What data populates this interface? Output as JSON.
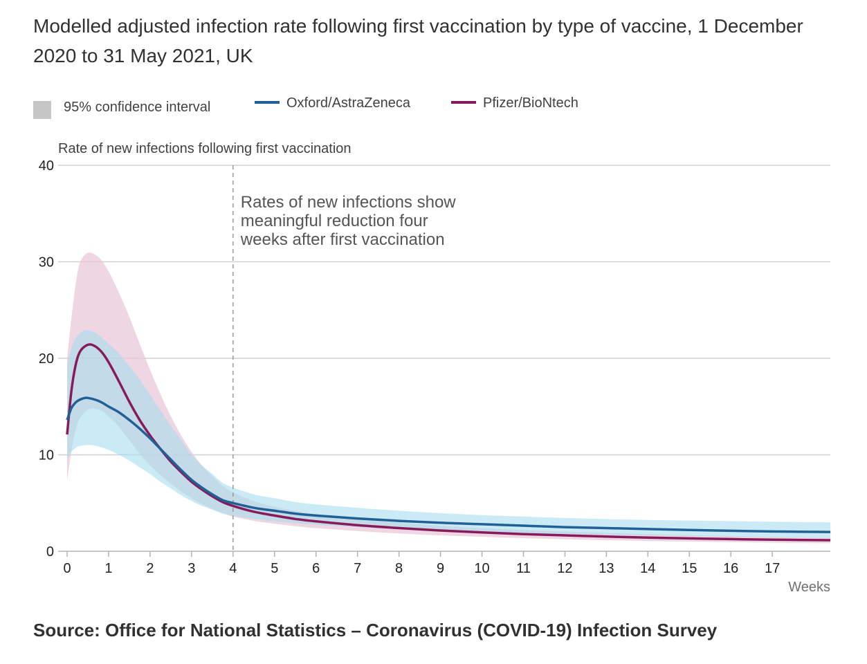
{
  "title": "Modelled adjusted infection rate following first vaccination by type of vaccine, 1 December 2020 to 31 May 2021, UK",
  "source": "Source: Office for National Statistics – Coronavirus (COVID-19) Infection Survey",
  "legend": {
    "ci_label": "95% confidence interval",
    "oxford_label": "Oxford/AstraZeneca",
    "pfizer_label": "Pfizer/BioNtech"
  },
  "colors": {
    "oxford": "#206095",
    "pfizer": "#871A5B",
    "oxford_ci": "#a6dcef",
    "pfizer_ci": "#e8c8d8",
    "ci_legend": "#c6c6c6",
    "grid": "#d0d0d0",
    "axis": "#b3b3b3",
    "annotation_line": "#999999"
  },
  "chart_data": {
    "type": "line",
    "ylabel": "Rate of new infections following first vaccination",
    "xlabel": "Weeks",
    "xlim": [
      0,
      18.4
    ],
    "ylim": [
      0,
      40
    ],
    "yticks": [
      0,
      10,
      20,
      30,
      40
    ],
    "xticks": [
      0,
      1,
      2,
      3,
      4,
      5,
      6,
      7,
      8,
      9,
      10,
      11,
      12,
      13,
      14,
      15,
      16,
      17
    ],
    "grid": true,
    "legend_position": "top-left",
    "annotation": {
      "x": 4,
      "text": [
        "Rates of new infections show",
        "meaningful reduction four",
        "weeks after first vaccination"
      ]
    },
    "series": [
      {
        "name": "Oxford/AstraZeneca",
        "x": [
          0,
          0.1,
          0.2,
          0.3,
          0.45,
          0.6,
          0.8,
          1,
          1.25,
          1.5,
          1.75,
          2,
          2.25,
          2.5,
          2.75,
          3,
          3.25,
          3.5,
          3.75,
          4,
          4.5,
          5,
          5.5,
          6,
          7,
          8,
          9,
          10,
          11,
          12,
          13,
          14,
          15,
          16,
          17,
          18.4
        ],
        "y": [
          13.6,
          14.8,
          15.4,
          15.7,
          15.9,
          15.8,
          15.5,
          15.0,
          14.4,
          13.6,
          12.7,
          11.7,
          10.6,
          9.5,
          8.4,
          7.4,
          6.6,
          5.9,
          5.3,
          5.0,
          4.5,
          4.2,
          3.9,
          3.7,
          3.4,
          3.15,
          2.95,
          2.8,
          2.65,
          2.5,
          2.4,
          2.3,
          2.2,
          2.12,
          2.05,
          2.0
        ],
        "ci_lower": [
          9.5,
          10.3,
          10.7,
          10.9,
          11.0,
          11.0,
          10.8,
          10.5,
          10.0,
          9.4,
          8.7,
          8.0,
          7.2,
          6.5,
          5.8,
          5.2,
          4.7,
          4.3,
          3.9,
          3.7,
          3.35,
          3.1,
          2.9,
          2.75,
          2.5,
          2.3,
          2.15,
          2.0,
          1.9,
          1.8,
          1.72,
          1.65,
          1.58,
          1.52,
          1.46,
          1.4
        ],
        "ci_upper": [
          19.3,
          21.0,
          22.0,
          22.6,
          22.9,
          22.8,
          22.3,
          21.5,
          20.5,
          19.2,
          17.8,
          16.2,
          14.6,
          13.0,
          11.5,
          10.0,
          8.9,
          8.0,
          7.1,
          6.6,
          5.9,
          5.5,
          5.1,
          4.85,
          4.5,
          4.2,
          3.95,
          3.75,
          3.6,
          3.45,
          3.33,
          3.25,
          3.18,
          3.12,
          3.06,
          3.0
        ]
      },
      {
        "name": "Pfizer/BioNtech",
        "x": [
          0,
          0.1,
          0.2,
          0.3,
          0.45,
          0.6,
          0.8,
          1,
          1.25,
          1.5,
          1.75,
          2,
          2.25,
          2.5,
          2.75,
          3,
          3.25,
          3.5,
          3.75,
          4,
          4.5,
          5,
          5.5,
          6,
          7,
          8,
          9,
          10,
          11,
          12,
          13,
          14,
          15,
          16,
          17,
          18.4
        ],
        "y": [
          12.1,
          16.5,
          19.2,
          20.6,
          21.3,
          21.4,
          20.8,
          19.6,
          17.6,
          15.5,
          13.6,
          12.0,
          10.6,
          9.3,
          8.2,
          7.2,
          6.4,
          5.7,
          5.1,
          4.7,
          4.1,
          3.7,
          3.35,
          3.1,
          2.7,
          2.4,
          2.15,
          1.95,
          1.78,
          1.65,
          1.52,
          1.42,
          1.33,
          1.26,
          1.2,
          1.15
        ],
        "ci_lower": [
          7.3,
          10.3,
          12.5,
          13.7,
          14.5,
          14.8,
          14.6,
          14.0,
          12.9,
          11.5,
          10.1,
          8.9,
          7.9,
          7.0,
          6.2,
          5.5,
          4.9,
          4.4,
          3.95,
          3.6,
          3.15,
          2.85,
          2.6,
          2.4,
          2.1,
          1.85,
          1.65,
          1.5,
          1.36,
          1.25,
          1.15,
          1.07,
          1.0,
          0.94,
          0.89,
          0.84
        ],
        "ci_upper": [
          20.0,
          24.0,
          27.5,
          29.8,
          30.8,
          30.9,
          30.3,
          29.0,
          26.8,
          24.3,
          21.5,
          18.8,
          16.3,
          14.0,
          12.0,
          10.3,
          8.9,
          7.8,
          6.8,
          6.1,
          5.2,
          4.6,
          4.2,
          3.85,
          3.35,
          2.95,
          2.65,
          2.4,
          2.2,
          2.04,
          1.9,
          1.78,
          1.67,
          1.58,
          1.5,
          1.43
        ]
      }
    ]
  }
}
